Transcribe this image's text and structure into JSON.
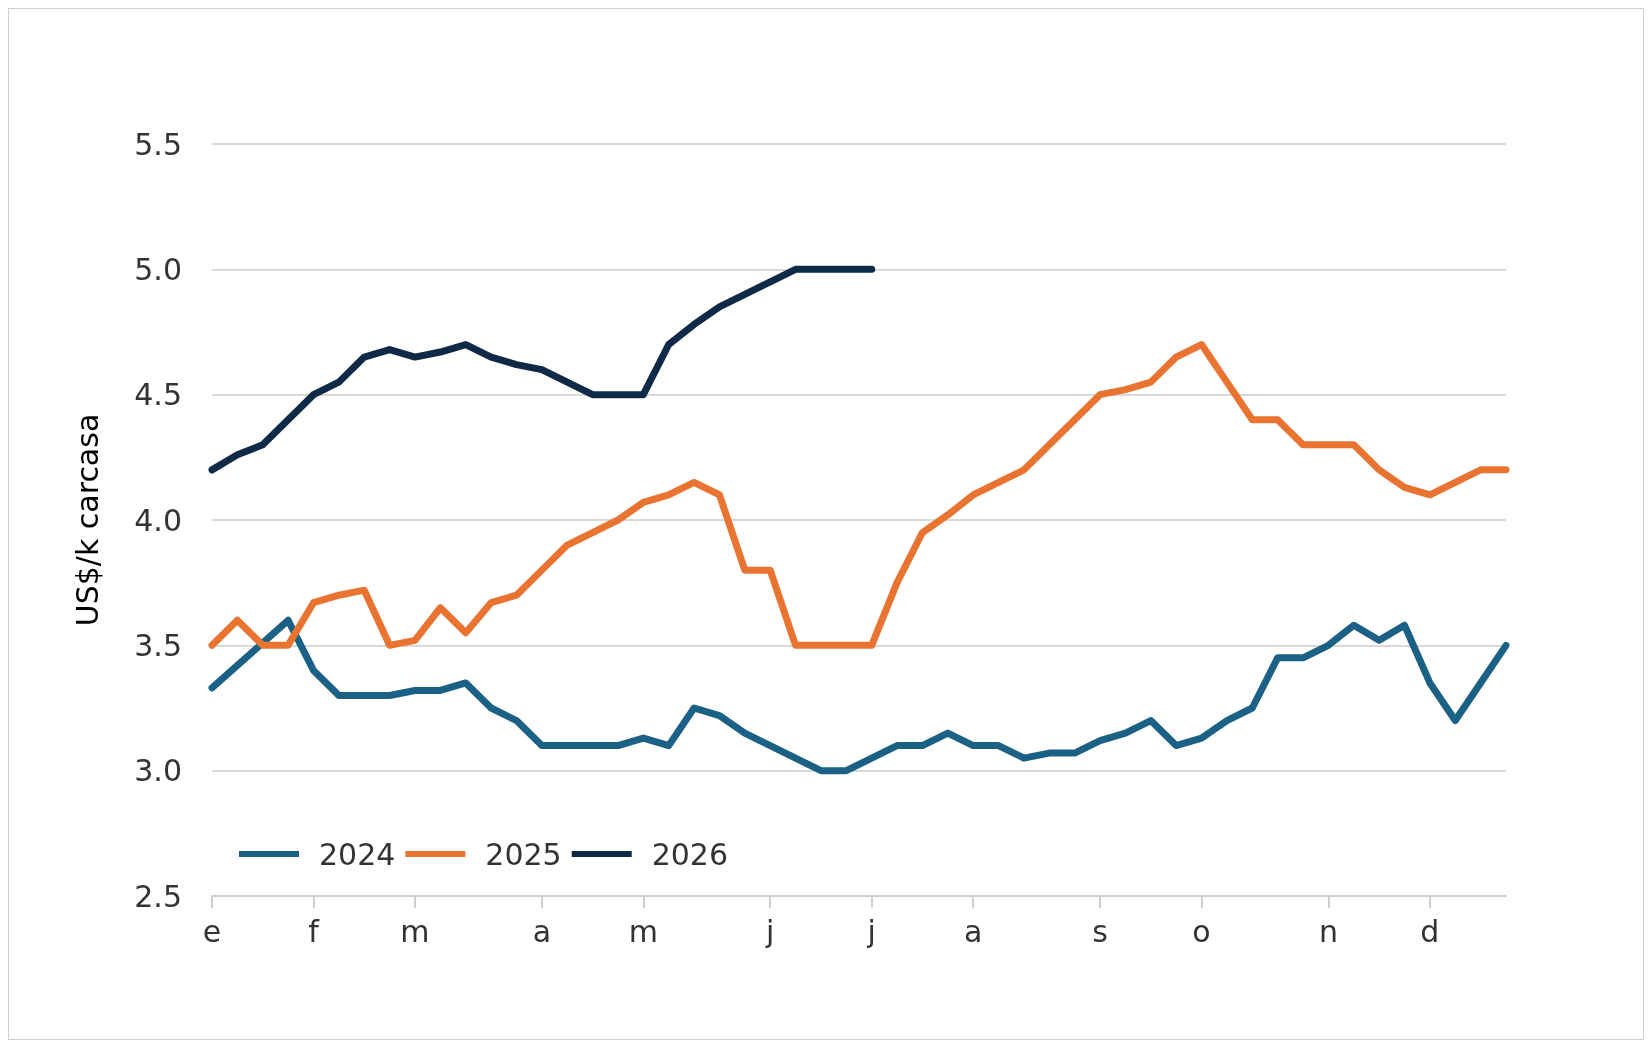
{
  "chart_data": {
    "type": "line",
    "ylabel": "US$/k carcasa",
    "categories": [
      "e",
      null,
      null,
      null,
      "f",
      null,
      null,
      null,
      "m",
      null,
      null,
      null,
      null,
      "a",
      null,
      null,
      null,
      "m",
      null,
      null,
      null,
      null,
      "j",
      null,
      null,
      null,
      "j",
      null,
      null,
      null,
      "a",
      null,
      null,
      null,
      null,
      "s",
      null,
      null,
      null,
      "o",
      null,
      null,
      null,
      null,
      "n",
      null,
      null,
      null,
      "d",
      null,
      null,
      null
    ],
    "series": [
      {
        "name": "2024",
        "color": "#1a6185",
        "values": [
          3.33,
          3.42,
          3.51,
          3.6,
          3.4,
          3.3,
          3.3,
          3.3,
          3.32,
          3.32,
          3.35,
          3.25,
          3.2,
          3.1,
          3.1,
          3.1,
          3.1,
          3.13,
          3.1,
          3.25,
          3.22,
          3.15,
          3.1,
          3.05,
          3.0,
          3.0,
          3.05,
          3.1,
          3.1,
          3.15,
          3.1,
          3.1,
          3.05,
          3.07,
          3.07,
          3.12,
          3.15,
          3.2,
          3.1,
          3.13,
          3.2,
          3.25,
          3.45,
          3.45,
          3.5,
          3.58,
          3.52,
          3.58,
          3.35,
          3.2,
          3.35,
          3.5
        ]
      },
      {
        "name": "2025",
        "color": "#e97432",
        "values": [
          3.5,
          3.6,
          3.5,
          3.5,
          3.67,
          3.7,
          3.72,
          3.5,
          3.52,
          3.65,
          3.55,
          3.67,
          3.7,
          3.8,
          3.9,
          3.95,
          4.0,
          4.07,
          4.1,
          4.15,
          4.1,
          3.8,
          3.8,
          3.5,
          3.5,
          3.5,
          3.5,
          3.75,
          3.95,
          4.02,
          4.1,
          4.15,
          4.2,
          4.3,
          4.4,
          4.5,
          4.52,
          4.55,
          4.65,
          4.7,
          4.55,
          4.4,
          4.4,
          4.3,
          4.3,
          4.3,
          4.2,
          4.13,
          4.1,
          4.15,
          4.2,
          4.2
        ]
      },
      {
        "name": "2026",
        "color": "#0e2a47",
        "values": [
          4.2,
          4.26,
          4.3,
          4.4,
          4.5,
          4.55,
          4.65,
          4.68,
          4.65,
          4.67,
          4.7,
          4.65,
          4.62,
          4.6,
          4.55,
          4.5,
          4.5,
          4.5,
          4.7,
          4.78,
          4.85,
          4.9,
          4.95,
          5.0,
          5.0,
          5.0,
          5.0,
          null,
          null,
          null,
          null,
          null,
          null,
          null,
          null,
          null,
          null,
          null,
          null,
          null,
          null,
          null,
          null,
          null,
          null,
          null,
          null,
          null,
          null,
          null,
          null,
          null
        ]
      }
    ],
    "ylim": [
      2.5,
      5.5
    ],
    "yticks": [
      2.5,
      {
        "value": 3,
        "label": "3.0"
      },
      3.5,
      {
        "value": 4,
        "label": "4.0"
      },
      4.5,
      {
        "value": 5,
        "label": "5.0"
      },
      5.5
    ],
    "grid": "y",
    "legend": "bottom left",
    "marker": "none",
    "line_style": "solid"
  }
}
